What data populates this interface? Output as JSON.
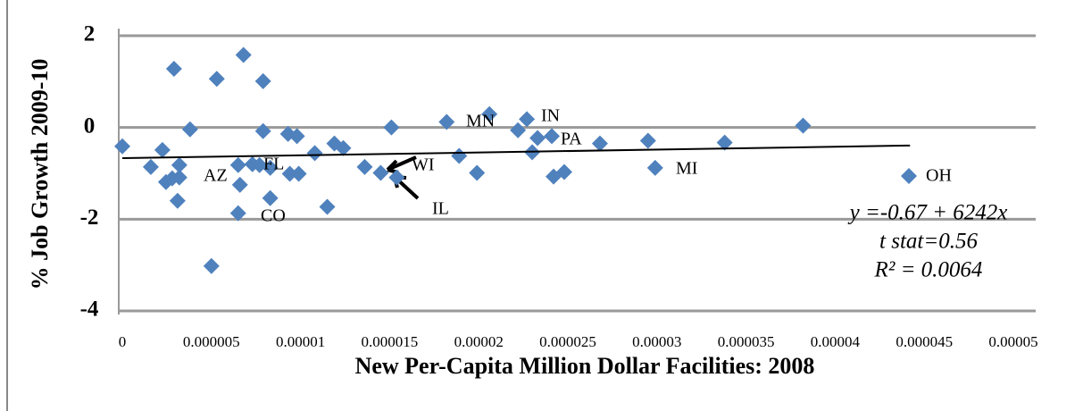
{
  "chart_data": {
    "type": "scatter",
    "x_label": "New Per-Capita Million Dollar Facilities:  2008",
    "y_label": "% Job Growth 2009-10",
    "xlim": [
      0,
      5e-05
    ],
    "xticks": [
      0,
      5e-06,
      1e-05,
      1.5e-05,
      2e-05,
      2.5e-05,
      3e-05,
      3.5e-05,
      4e-05,
      4.5e-05,
      5e-05
    ],
    "ylim": [
      -4,
      2
    ],
    "yticks": [
      2,
      0,
      -2,
      -4
    ],
    "grid": true,
    "legend": "right",
    "series": [
      {
        "name": "OH",
        "color": "#4f81bd",
        "x": [
          0,
          1.6e-06,
          2.25e-06,
          2.45e-06,
          2.8e-06,
          2.9e-06,
          3.2e-06,
          3.2e-06,
          3.1e-06,
          3.8e-06,
          5e-06,
          5.3e-06,
          6.5e-06,
          6.6e-06,
          6.5e-06,
          6.8e-06,
          7.3e-06,
          7.7e-06,
          7.9e-06,
          7.9e-06,
          8.3e-06,
          8.3e-06,
          9.3e-06,
          9.4e-06,
          9.8e-06,
          9.9e-06,
          1.08e-05,
          1.15e-05,
          1.19e-05,
          1.24e-05,
          1.36e-05,
          1.45e-05,
          1.51e-05,
          1.54e-05,
          1.82e-05,
          1.89e-05,
          1.99e-05,
          2.06e-05,
          2.22e-05,
          2.27e-05,
          2.3e-05,
          2.33e-05,
          2.41e-05,
          2.42e-05,
          2.48e-05,
          2.68e-05,
          2.95e-05,
          2.99e-05,
          3.38e-05,
          3.82e-05
        ],
        "y": [
          -0.41,
          -0.86,
          -0.49,
          -1.19,
          -1.11,
          1.28,
          -0.82,
          -1.09,
          -1.6,
          -0.04,
          -3.02,
          1.06,
          -0.82,
          -1.25,
          -1.87,
          1.58,
          -0.8,
          -0.82,
          1.01,
          -0.08,
          -0.88,
          -1.54,
          -0.14,
          -1.01,
          -0.19,
          -1.01,
          -0.56,
          -1.73,
          -0.35,
          -0.45,
          -0.86,
          -0.99,
          0.0,
          -1.09,
          0.12,
          -0.62,
          -0.99,
          0.29,
          -0.06,
          0.18,
          -0.54,
          -0.23,
          -0.19,
          -1.07,
          -0.97,
          -0.35,
          -0.29,
          -0.88,
          -0.33,
          0.04
        ]
      }
    ],
    "trendline": {
      "x": [
        0,
        4.42e-05
      ],
      "y": [
        -0.67,
        -0.394
      ]
    },
    "point_labels": [
      "AZ",
      "FL",
      "CO",
      "WI",
      "IL",
      "MN",
      "IN",
      "PA",
      "MI"
    ],
    "annotations": [
      "y =-0.67 + 6242x",
      "t stat=0.56",
      "R² = 0.0064"
    ]
  }
}
